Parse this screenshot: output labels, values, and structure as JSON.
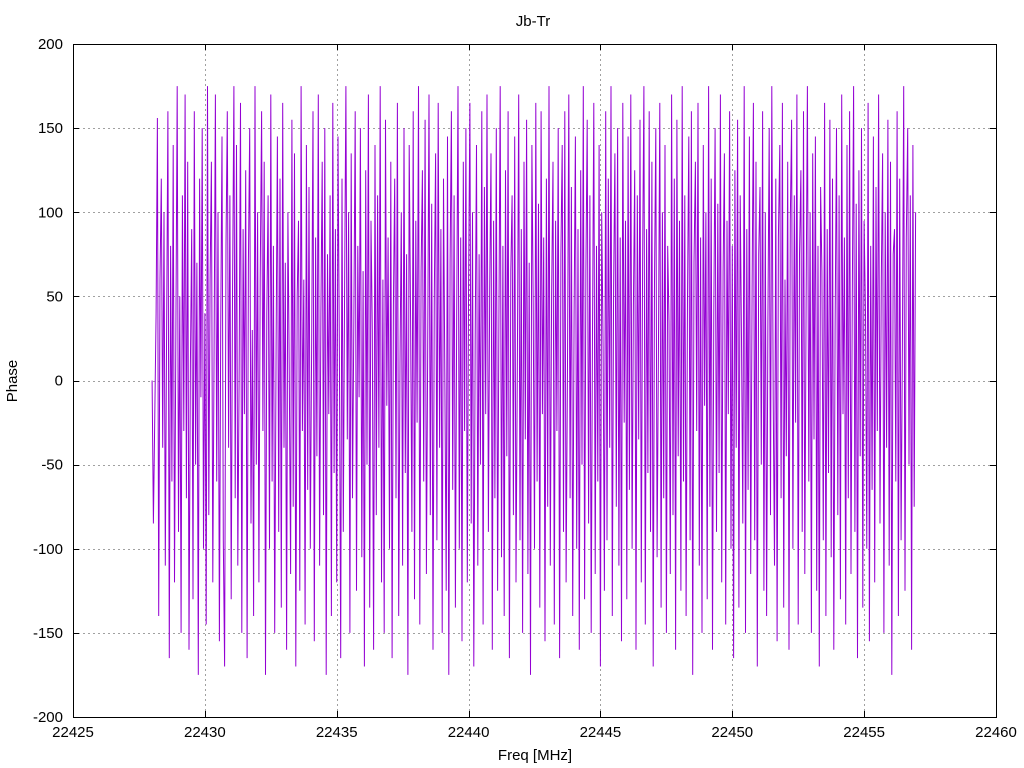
{
  "chart_data": {
    "type": "line",
    "title": "Jb-Tr",
    "xlabel": "Freq [MHz]",
    "ylabel": "Phase",
    "xlim": [
      22425,
      22460
    ],
    "ylim": [
      -200,
      200
    ],
    "xticks": [
      22425,
      22430,
      22435,
      22440,
      22445,
      22450,
      22455,
      22460
    ],
    "yticks": [
      -200,
      -150,
      -100,
      -50,
      0,
      50,
      100,
      150,
      200
    ],
    "grid": true,
    "legend": "none",
    "series": [
      {
        "color": "#9400d3",
        "x_start": 22428.0,
        "x_step": 0.05,
        "values": [
          0,
          -85,
          -20,
          40,
          156,
          -140,
          60,
          120,
          -40,
          100,
          -110,
          30,
          160,
          -165,
          80,
          -60,
          140,
          -120,
          20,
          175,
          -90,
          50,
          -150,
          110,
          -30,
          170,
          -70,
          130,
          -160,
          10,
          90,
          -130,
          160,
          -50,
          70,
          -175,
          120,
          -10,
          150,
          -100,
          40,
          -145,
          175,
          -80,
          60,
          130,
          -120,
          20,
          170,
          -60,
          100,
          -155,
          30,
          145,
          -95,
          -170,
          80,
          160,
          -40,
          110,
          -130,
          50,
          175,
          -70,
          140,
          -110,
          0,
          165,
          -150,
          90,
          -20,
          125,
          -165,
          70,
          150,
          -85,
          30,
          -140,
          175,
          -50,
          100,
          -120,
          60,
          160,
          -30,
          130,
          -175,
          40,
          110,
          -100,
          170,
          -60,
          80,
          -150,
          20,
          145,
          -90,
          120,
          -135,
          165,
          -40,
          70,
          -160,
          100,
          10,
          -115,
          155,
          -75,
          135,
          -170,
          50,
          95,
          -125,
          175,
          -30,
          60,
          -145,
          140,
          -65,
          115,
          -100,
          25,
          160,
          -155,
          85,
          -45,
          170,
          -110,
          40,
          130,
          -80,
          150,
          -175,
          75,
          -20,
          110,
          -140,
          165,
          -55,
          90,
          -120,
          145,
          15,
          -165,
          120,
          -90,
          55,
          175,
          -35,
          100,
          -150,
          135,
          -70,
          40,
          160,
          -125,
          80,
          -10,
          150,
          -105,
          65,
          -170,
          125,
          -50,
          170,
          -135,
          95,
          30,
          -160,
          140,
          -80,
          110,
          -40,
          175,
          -120,
          60,
          -150,
          155,
          -15,
          85,
          -100,
          130,
          -165,
          45,
          120,
          -70,
          165,
          -140,
          10,
          100,
          -110,
          150,
          -55,
          75,
          -175,
          140,
          35,
          -90,
          160,
          -130,
          95,
          -25,
          175,
          -145,
          65,
          125,
          -60,
          155,
          -115,
          20,
          170,
          -80,
          105,
          -160,
          50,
          135,
          -95,
          165,
          -40,
          90,
          -150,
          120,
          5,
          -125,
          145,
          -175,
          70,
          160,
          -65,
          110,
          -135,
          40,
          175,
          -100,
          85,
          -155,
          130,
          -30,
          150,
          -120,
          60,
          165,
          -85,
          100,
          -170,
          25,
          140,
          -110,
          75,
          -50,
          160,
          -145,
          115,
          -20,
          170,
          -90,
          55,
          135,
          -160,
          95,
          -70,
          150,
          -125,
          35,
          175,
          -105,
          80,
          -140,
          125,
          -45,
          160,
          -165,
          65,
          110,
          -80,
          145,
          -120,
          15,
          170,
          -95,
          90,
          -150,
          130,
          -35,
          155,
          -115,
          70,
          -175,
          140,
          45,
          -100,
          165,
          -60,
          105,
          -135,
          160,
          -20,
          85,
          -155,
          120,
          -75,
          175,
          -110,
          50,
          130,
          -145,
          95,
          -30,
          150,
          -165,
          75,
          140,
          -90,
          160,
          -120,
          10,
          170,
          -70,
          115,
          -140,
          40,
          145,
          -100,
          90,
          -160,
          125,
          -50,
          175,
          -130,
          65,
          155,
          -85,
          110,
          -150,
          30,
          165,
          -115,
          80,
          -60,
          140,
          -170,
          100,
          20,
          -125,
          160,
          -95,
          120,
          -40,
          175,
          -140,
          55,
          135,
          -75,
          150,
          -110,
          85,
          -155,
          165,
          -25,
          95,
          -130,
          145,
          -65,
          170,
          -100,
          45,
          125,
          -160,
          110,
          -35,
          155,
          -120,
          70,
          175,
          -145,
          90,
          -55,
          160,
          -90,
          130,
          -170,
          60,
          150,
          -105,
          15,
          165,
          -135,
          100,
          -70,
          140,
          -150,
          80,
          35,
          -115,
          170,
          -80,
          120,
          -160,
          155,
          -45,
          95,
          -125,
          175,
          -60,
          110,
          -140,
          50,
          145,
          -95,
          160,
          -175,
          70,
          130,
          -30,
          165,
          -110,
          85,
          -150,
          140,
          -15,
          100,
          -130,
          175,
          -75,
          120,
          -160,
          40,
          150,
          -90,
          105,
          -55,
          170,
          -120,
          65,
          135,
          -145,
          95,
          -20,
          160,
          -100,
          80,
          -165,
          125,
          -40,
          155,
          -135,
          110,
          25,
          -85,
          175,
          -150,
          90,
          -65,
          145,
          -115,
          55,
          165,
          -95,
          130,
          -170,
          75,
          115,
          -50,
          160,
          -125,
          100,
          -140,
          35,
          150,
          -80,
          175,
          -10,
          -110,
          120,
          -155,
          85,
          140,
          -70,
          165,
          -135,
          60,
          -45,
          130,
          -160,
          95,
          155,
          -100,
          110,
          -25,
          170,
          -145,
          75,
          125,
          -90,
          160,
          -115,
          45,
          175,
          -60,
          100,
          -150,
          135,
          -35,
          145,
          -125,
          80,
          -170,
          115,
          65,
          -95,
          165,
          -140,
          90,
          -55,
          155,
          -105,
          120,
          -160,
          30,
          150,
          -80,
          110,
          -130,
          170,
          -20,
          85,
          -145,
          140,
          -70,
          160,
          -115,
          50,
          175,
          -90,
          105,
          -165,
          125,
          -45,
          150,
          -135,
          95,
          40,
          -100,
          165,
          -155,
          80,
          -65,
          145,
          -120,
          115,
          -30,
          170,
          -85,
          60,
          135,
          -150,
          100,
          -40,
          155,
          -110,
          130,
          -175,
          75,
          90,
          -60,
          160,
          -140,
          120,
          -95,
          20,
          175,
          -125,
          85,
          150,
          -50,
          110,
          -160,
          140,
          -75,
          100
        ]
      }
    ]
  }
}
